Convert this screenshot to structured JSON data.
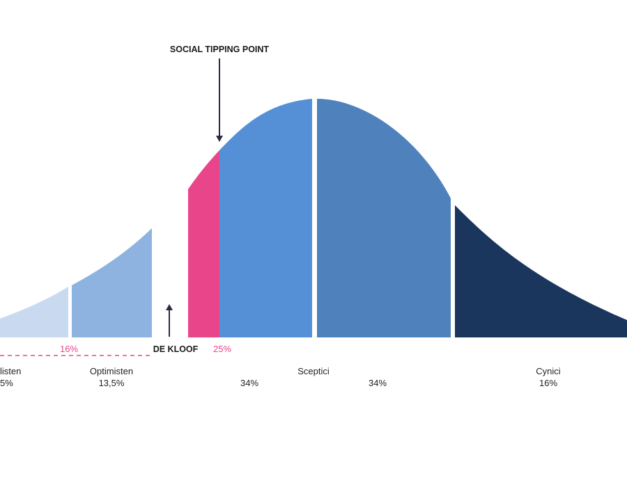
{
  "annotations": {
    "tipping_point": "SOCIAL TIPPING POINT",
    "chasm": "DE KLOOF",
    "chasm_left_share": "16%",
    "tipping_share": "25%"
  },
  "groups": [
    {
      "label": "listen",
      "share": "5%"
    },
    {
      "label": "Optimisten",
      "share": "13,5%"
    },
    {
      "label": "Sceptici",
      "share": "34%",
      "share2": "34%"
    },
    {
      "label": "Cynici",
      "share": "16%"
    }
  ]
}
